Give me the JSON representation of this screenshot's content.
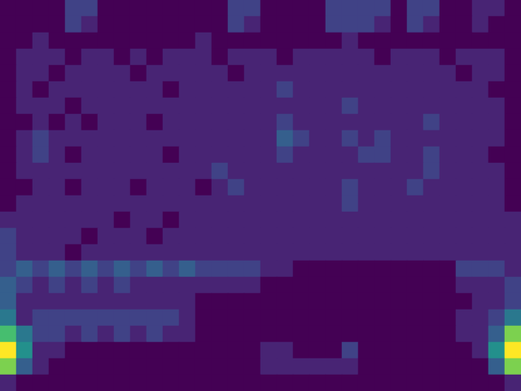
{
  "chart_data": {
    "type": "heatmap",
    "tick_labels": false,
    "value_range": [
      0,
      10
    ],
    "cells": [
      [
        0,
        0,
        0,
        0,
        2,
        2,
        0,
        0,
        0,
        0,
        0,
        0,
        0,
        0,
        2,
        2,
        0,
        0,
        0,
        0,
        2,
        2,
        2,
        2,
        0,
        2,
        2,
        0,
        0,
        1,
        1,
        0
      ],
      [
        0,
        0,
        0,
        0,
        2,
        1,
        0,
        0,
        0,
        0,
        0,
        0,
        0,
        0,
        2,
        1,
        0,
        0,
        0,
        0,
        2,
        2,
        2,
        1,
        0,
        2,
        1,
        0,
        0,
        1,
        0,
        0
      ],
      [
        0,
        0,
        1,
        0,
        0,
        0,
        0,
        0,
        0,
        0,
        0,
        0,
        1,
        0,
        0,
        0,
        0,
        0,
        0,
        0,
        0,
        1,
        0,
        0,
        0,
        0,
        0,
        0,
        0,
        0,
        0,
        0
      ],
      [
        0,
        1,
        1,
        1,
        0,
        1,
        1,
        0,
        1,
        0,
        1,
        1,
        1,
        0,
        1,
        1,
        1,
        0,
        1,
        1,
        1,
        1,
        1,
        0,
        1,
        1,
        1,
        0,
        1,
        1,
        1,
        0
      ],
      [
        0,
        1,
        1,
        0,
        1,
        1,
        1,
        1,
        0,
        1,
        1,
        1,
        1,
        1,
        0,
        1,
        1,
        1,
        1,
        1,
        1,
        1,
        1,
        1,
        1,
        1,
        1,
        1,
        0,
        1,
        1,
        0
      ],
      [
        0,
        1,
        0,
        1,
        1,
        1,
        1,
        1,
        1,
        1,
        0,
        1,
        1,
        1,
        1,
        1,
        1,
        2,
        1,
        1,
        1,
        1,
        1,
        1,
        1,
        1,
        1,
        1,
        1,
        1,
        0,
        0
      ],
      [
        0,
        1,
        1,
        1,
        0,
        1,
        1,
        1,
        1,
        1,
        1,
        1,
        1,
        1,
        1,
        1,
        1,
        1,
        1,
        1,
        1,
        2,
        1,
        1,
        1,
        1,
        1,
        1,
        1,
        1,
        1,
        0
      ],
      [
        0,
        0,
        1,
        0,
        1,
        0,
        1,
        1,
        1,
        0,
        1,
        1,
        1,
        1,
        1,
        1,
        1,
        2,
        1,
        1,
        1,
        1,
        1,
        1,
        1,
        1,
        2,
        1,
        1,
        1,
        1,
        0
      ],
      [
        0,
        1,
        2,
        1,
        1,
        1,
        1,
        1,
        1,
        1,
        1,
        1,
        1,
        1,
        1,
        1,
        1,
        3,
        2,
        1,
        1,
        2,
        1,
        2,
        1,
        1,
        1,
        1,
        1,
        1,
        1,
        0
      ],
      [
        0,
        1,
        2,
        1,
        0,
        1,
        1,
        1,
        1,
        1,
        0,
        1,
        1,
        1,
        1,
        1,
        1,
        2,
        1,
        1,
        1,
        1,
        2,
        2,
        1,
        1,
        2,
        1,
        1,
        1,
        0,
        0
      ],
      [
        0,
        1,
        1,
        1,
        1,
        1,
        1,
        1,
        1,
        1,
        1,
        1,
        1,
        2,
        1,
        1,
        1,
        1,
        1,
        1,
        1,
        1,
        1,
        1,
        1,
        1,
        2,
        1,
        1,
        1,
        1,
        0
      ],
      [
        0,
        0,
        1,
        1,
        0,
        1,
        1,
        1,
        0,
        1,
        1,
        1,
        0,
        1,
        2,
        1,
        1,
        1,
        1,
        1,
        1,
        2,
        1,
        1,
        1,
        2,
        1,
        1,
        1,
        1,
        1,
        0
      ],
      [
        0,
        1,
        1,
        1,
        1,
        1,
        1,
        1,
        1,
        1,
        1,
        1,
        1,
        1,
        1,
        1,
        1,
        1,
        1,
        1,
        1,
        2,
        1,
        1,
        1,
        1,
        1,
        1,
        1,
        1,
        1,
        0
      ],
      [
        1,
        1,
        1,
        1,
        1,
        1,
        1,
        0,
        1,
        1,
        0,
        1,
        1,
        1,
        1,
        1,
        1,
        1,
        1,
        1,
        1,
        1,
        1,
        1,
        1,
        1,
        1,
        1,
        1,
        1,
        1,
        1
      ],
      [
        2,
        1,
        1,
        1,
        1,
        0,
        1,
        1,
        1,
        0,
        1,
        1,
        1,
        1,
        1,
        1,
        1,
        1,
        1,
        1,
        1,
        1,
        1,
        1,
        1,
        1,
        1,
        1,
        1,
        1,
        1,
        1
      ],
      [
        2,
        1,
        1,
        1,
        0,
        1,
        1,
        1,
        1,
        1,
        1,
        1,
        1,
        1,
        1,
        1,
        1,
        1,
        1,
        1,
        1,
        1,
        1,
        1,
        1,
        1,
        1,
        1,
        1,
        1,
        1,
        1
      ],
      [
        2,
        3,
        2,
        3,
        2,
        3,
        2,
        3,
        2,
        3,
        2,
        3,
        2,
        2,
        2,
        2,
        1,
        1,
        0,
        0,
        0,
        0,
        0,
        0,
        0,
        0,
        0,
        0,
        2,
        2,
        2,
        1
      ],
      [
        3,
        2,
        1,
        2,
        1,
        2,
        1,
        2,
        1,
        1,
        1,
        1,
        1,
        1,
        1,
        1,
        0,
        0,
        0,
        0,
        0,
        0,
        0,
        0,
        0,
        0,
        0,
        0,
        1,
        1,
        1,
        2
      ],
      [
        3,
        1,
        1,
        1,
        1,
        1,
        1,
        1,
        1,
        1,
        1,
        1,
        0,
        0,
        0,
        0,
        0,
        0,
        0,
        0,
        0,
        0,
        0,
        0,
        0,
        0,
        0,
        0,
        0,
        1,
        1,
        2
      ],
      [
        4,
        1,
        2,
        2,
        2,
        2,
        2,
        2,
        2,
        2,
        2,
        1,
        0,
        0,
        0,
        0,
        0,
        0,
        0,
        0,
        0,
        0,
        0,
        0,
        0,
        0,
        0,
        0,
        1,
        1,
        2,
        4
      ],
      [
        7,
        4,
        2,
        2,
        1,
        2,
        1,
        2,
        1,
        2,
        1,
        1,
        0,
        0,
        0,
        0,
        0,
        0,
        0,
        0,
        0,
        0,
        0,
        0,
        0,
        0,
        0,
        0,
        1,
        1,
        3,
        8
      ],
      [
        10,
        5,
        1,
        1,
        0,
        0,
        0,
        0,
        0,
        0,
        0,
        0,
        0,
        0,
        0,
        0,
        1,
        1,
        0,
        0,
        0,
        2,
        0,
        0,
        0,
        0,
        0,
        0,
        0,
        1,
        5,
        10
      ],
      [
        8,
        3,
        1,
        0,
        0,
        0,
        0,
        0,
        0,
        0,
        0,
        0,
        0,
        0,
        0,
        0,
        1,
        1,
        1,
        1,
        1,
        1,
        0,
        0,
        0,
        0,
        0,
        0,
        0,
        0,
        3,
        8
      ],
      [
        1,
        0,
        0,
        0,
        0,
        0,
        0,
        0,
        0,
        0,
        0,
        0,
        0,
        0,
        0,
        0,
        0,
        0,
        0,
        0,
        0,
        0,
        0,
        0,
        0,
        0,
        0,
        0,
        0,
        0,
        0,
        1
      ]
    ]
  }
}
